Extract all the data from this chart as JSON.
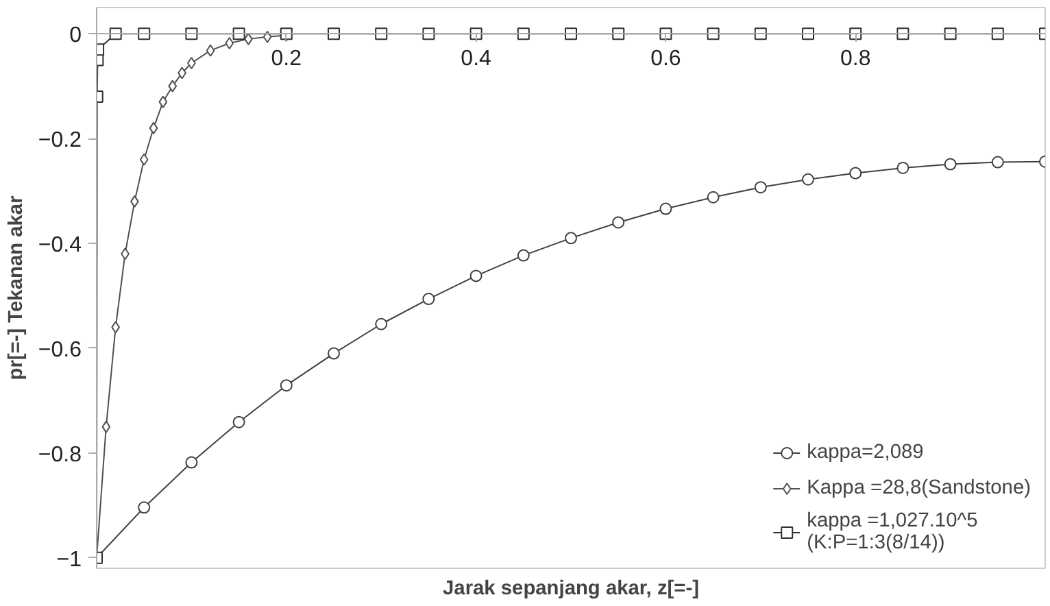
{
  "chart_data": {
    "type": "line",
    "xlabel": "Jarak sepanjang akar, z[=-]",
    "ylabel": "pr[=-] Tekanan akar",
    "xlim": [
      0,
      1
    ],
    "ylim": [
      -1.02,
      0.05
    ],
    "xticks": [
      0.2,
      0.4,
      0.6,
      0.8
    ],
    "yticks": [
      -1,
      -0.8,
      -0.6,
      -0.4,
      -0.2,
      0
    ],
    "grid": false,
    "legend": "bottom right",
    "series": [
      {
        "name": "kappa=2,089",
        "color": "#404040",
        "marker": "circle",
        "x": [
          0,
          0.05,
          0.1,
          0.15,
          0.2,
          0.25,
          0.3,
          0.35,
          0.4,
          0.45,
          0.5,
          0.55,
          0.6,
          0.65,
          0.7,
          0.75,
          0.8,
          0.85,
          0.9,
          0.95,
          1
        ],
        "values": [
          -1,
          -0.904,
          -0.818,
          -0.741,
          -0.671,
          -0.61,
          -0.554,
          -0.506,
          -0.462,
          -0.423,
          -0.39,
          -0.36,
          -0.334,
          -0.312,
          -0.293,
          -0.278,
          -0.266,
          -0.256,
          -0.249,
          -0.245,
          -0.244
        ]
      },
      {
        "name": "Kappa =28,8(Sandstone)",
        "color": "#505050",
        "marker": "diamond",
        "x": [
          0,
          0.01,
          0.02,
          0.03,
          0.04,
          0.05,
          0.06,
          0.07,
          0.08,
          0.09,
          0.1,
          0.12,
          0.14,
          0.16,
          0.18,
          0.2
        ],
        "values": [
          -1,
          -0.75,
          -0.56,
          -0.42,
          -0.32,
          -0.24,
          -0.18,
          -0.13,
          -0.1,
          -0.075,
          -0.056,
          -0.032,
          -0.018,
          -0.01,
          -0.006,
          -0.003
        ]
      },
      {
        "name": "kappa =1,027.10^5\n(K:P=1:3(8/14))",
        "color": "#303030",
        "marker": "square",
        "x": [
          0,
          0.0005,
          0.001,
          0.0015,
          0.02,
          0.05,
          0.1,
          0.15,
          0.2,
          0.25,
          0.3,
          0.35,
          0.4,
          0.45,
          0.5,
          0.55,
          0.6,
          0.65,
          0.7,
          0.75,
          0.8,
          0.85,
          0.9,
          0.95,
          1
        ],
        "values": [
          -1,
          -0.12,
          -0.05,
          -0.03,
          0,
          0,
          0,
          0,
          0,
          0,
          0,
          0,
          0,
          0,
          0,
          0,
          0,
          0,
          0,
          0,
          0,
          0,
          0,
          0,
          0
        ]
      }
    ]
  }
}
